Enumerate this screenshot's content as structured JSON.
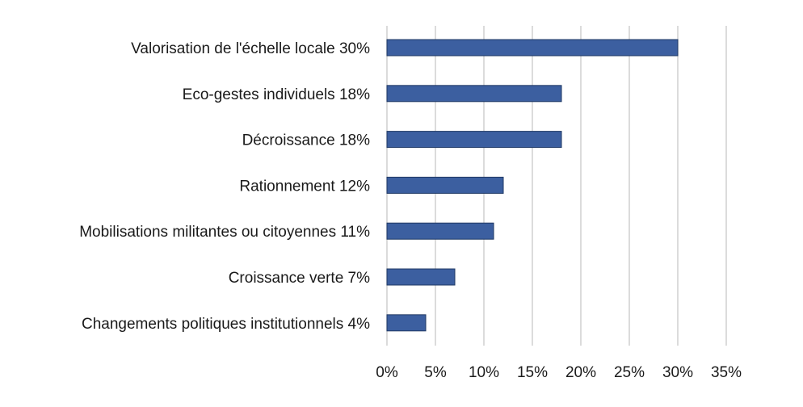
{
  "chart_data": {
    "type": "bar",
    "orientation": "horizontal",
    "title": "",
    "xlabel": "",
    "ylabel": "",
    "categories": [
      "Valorisation de l'échelle locale 30%",
      "Eco-gestes individuels 18%",
      "Décroissance 18%",
      "Rationnement 12%",
      "Mobilisations militantes ou citoyennes 11%",
      "Croissance verte 7%",
      "Changements politiques institutionnels 4%"
    ],
    "values": [
      30,
      18,
      18,
      12,
      11,
      7,
      4
    ],
    "xlim": [
      0,
      35
    ],
    "xticks": [
      0,
      5,
      10,
      15,
      20,
      25,
      30,
      35
    ],
    "xtick_labels": [
      "0%",
      "5%",
      "10%",
      "15%",
      "20%",
      "25%",
      "30%",
      "35%"
    ],
    "grid": "vertical",
    "legend": "none",
    "bar_color": "#3c5fa0",
    "grid_color": "#c8c8c8"
  }
}
